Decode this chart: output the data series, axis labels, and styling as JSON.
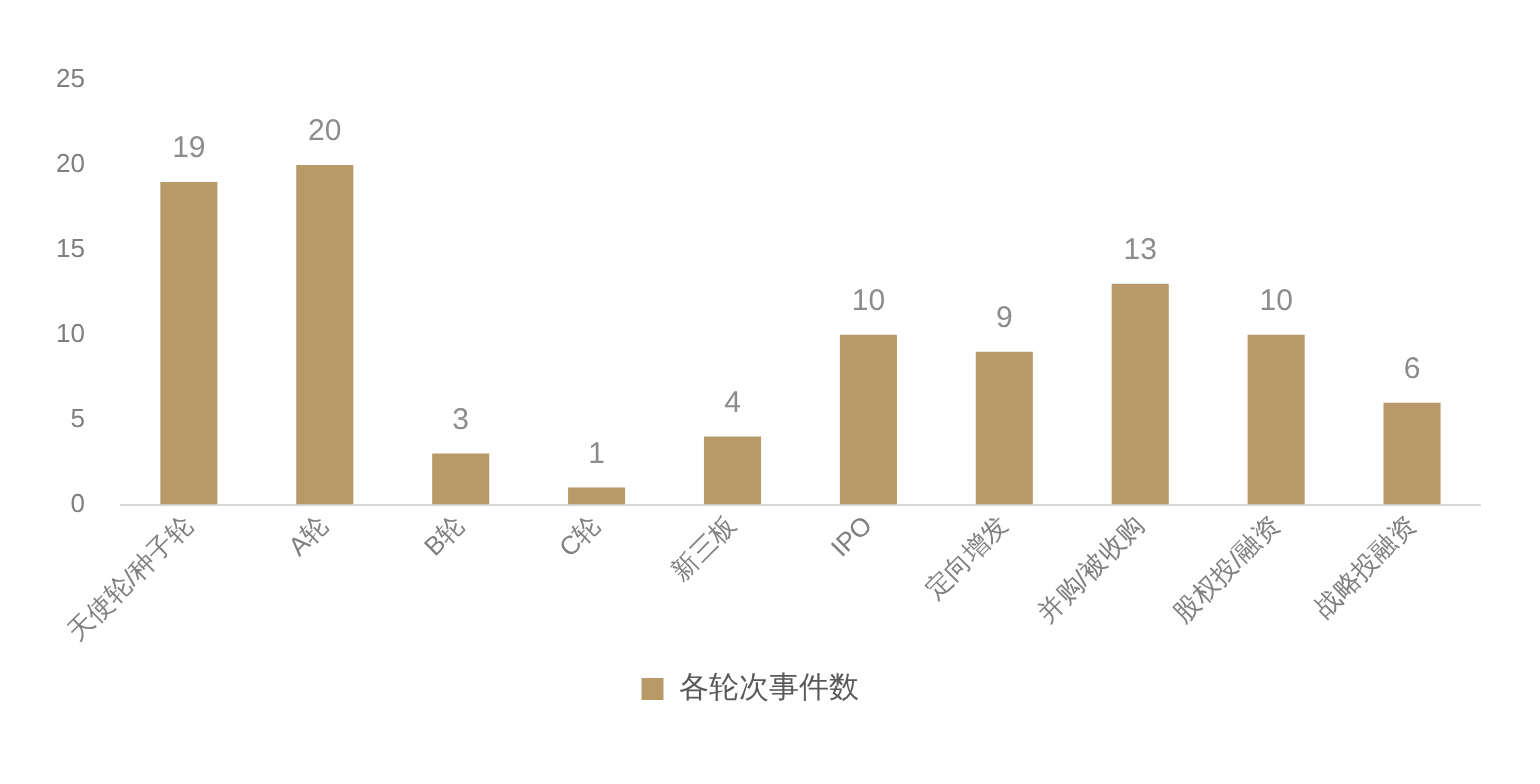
{
  "chart_data": {
    "type": "bar",
    "categories": [
      "天使轮/种子轮",
      "A轮",
      "B轮",
      "C轮",
      "新三板",
      "IPO",
      "定向增发",
      "并购/被收购",
      "股权投/融资",
      "战略投融资"
    ],
    "series": [
      {
        "name": "各轮次事件数",
        "color": "#b89968",
        "values": [
          19,
          20,
          3,
          1,
          4,
          10,
          9,
          13,
          10,
          6
        ]
      }
    ],
    "ylim": [
      0,
      25
    ],
    "yticks": [
      0,
      5,
      10,
      15,
      20,
      25
    ],
    "grid": false,
    "legend": "bottom",
    "data_labels": true
  }
}
